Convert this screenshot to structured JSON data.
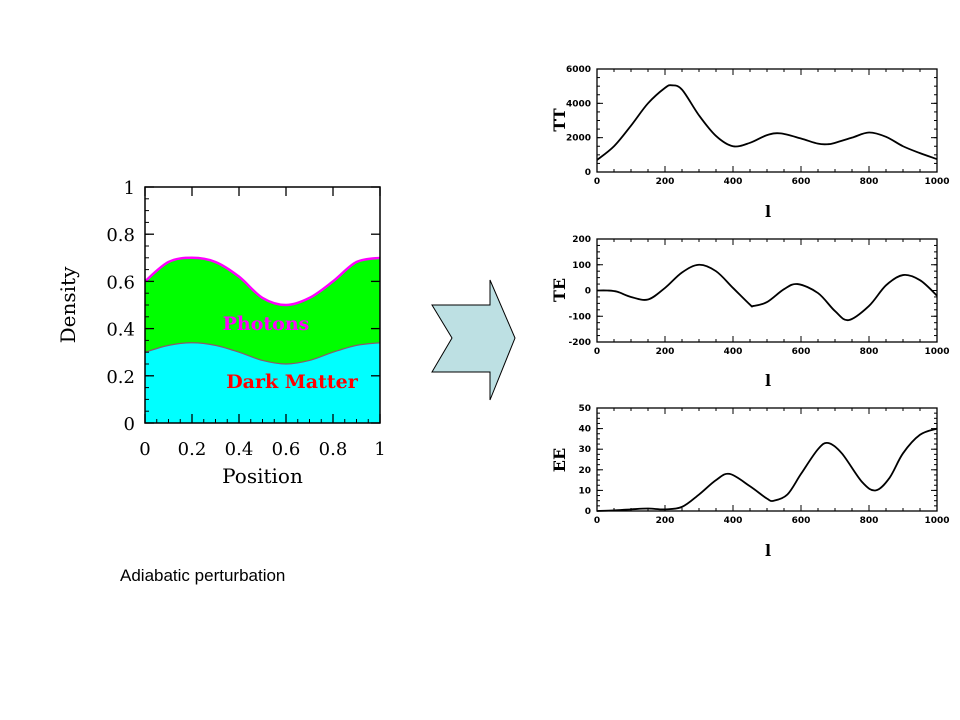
{
  "caption": "Adiabatic perturbation",
  "colors": {
    "dark_matter_fill": "#00ffff",
    "photons_fill": "#00ff00",
    "photons_line": "#ff00ff",
    "dark_matter_line": "#8a5a6a",
    "photons_label": "#ff00ff",
    "dark_matter_label": "#ff0000",
    "arrow_fill": "#bde0e3",
    "curve": "#000000"
  },
  "arrow": {
    "icon": "right-arrow-icon"
  },
  "chart_data": [
    {
      "id": "density",
      "type": "area",
      "xlabel": "Position",
      "ylabel": "Density",
      "xlim": [
        0,
        1
      ],
      "ylim": [
        0,
        1
      ],
      "xticks": [
        "0",
        "0.2",
        "0.4",
        "0.6",
        "0.8",
        "1"
      ],
      "yticks": [
        "0",
        "0.2",
        "0.4",
        "0.6",
        "0.8",
        "1"
      ],
      "x": [
        0,
        0.1,
        0.2,
        0.3,
        0.4,
        0.5,
        0.6,
        0.7,
        0.8,
        0.9,
        1.0
      ],
      "series": [
        {
          "name": "Dark Matter",
          "values": [
            0.3,
            0.329,
            0.34,
            0.329,
            0.3,
            0.265,
            0.25,
            0.265,
            0.3,
            0.329,
            0.34
          ]
        },
        {
          "name": "Photons",
          "values": [
            0.6,
            0.682,
            0.7,
            0.682,
            0.62,
            0.53,
            0.5,
            0.53,
            0.6,
            0.682,
            0.7
          ]
        }
      ]
    },
    {
      "id": "TT",
      "type": "line",
      "ylabel": "TT",
      "xlabel": "l",
      "xlim": [
        0,
        1000
      ],
      "ylim": [
        0,
        6000
      ],
      "xticks": [
        "0",
        "200",
        "400",
        "600",
        "800",
        "1000"
      ],
      "yticks": [
        "0",
        "2000",
        "4000",
        "6000"
      ],
      "x": [
        0,
        50,
        100,
        150,
        200,
        220,
        250,
        300,
        350,
        400,
        450,
        500,
        540,
        600,
        650,
        680,
        700,
        750,
        800,
        850,
        900,
        950,
        1000
      ],
      "values": [
        700,
        1500,
        2700,
        4000,
        4900,
        5050,
        4800,
        3300,
        2100,
        1500,
        1700,
        2150,
        2250,
        1950,
        1650,
        1620,
        1700,
        2000,
        2300,
        2050,
        1500,
        1100,
        750
      ]
    },
    {
      "id": "TE",
      "type": "line",
      "ylabel": "TE",
      "xlabel": "l",
      "xlim": [
        0,
        1000
      ],
      "ylim": [
        -200,
        200
      ],
      "xticks": [
        "0",
        "200",
        "400",
        "600",
        "800",
        "1000"
      ],
      "yticks": [
        "-200",
        "-100",
        "0",
        "100",
        "200"
      ],
      "x": [
        0,
        30,
        60,
        100,
        150,
        200,
        250,
        300,
        350,
        400,
        450,
        460,
        500,
        550,
        590,
        650,
        700,
        740,
        800,
        850,
        900,
        950,
        1000
      ],
      "values": [
        0,
        0,
        -5,
        -25,
        -35,
        10,
        70,
        100,
        75,
        10,
        -55,
        -60,
        -45,
        5,
        25,
        -10,
        -80,
        -115,
        -60,
        20,
        60,
        40,
        -20
      ]
    },
    {
      "id": "EE",
      "type": "line",
      "ylabel": "EE",
      "xlabel": "l",
      "xlim": [
        0,
        1000
      ],
      "ylim": [
        0,
        50
      ],
      "xticks": [
        "0",
        "200",
        "400",
        "600",
        "800",
        "1000"
      ],
      "yticks": [
        "0",
        "10",
        "20",
        "30",
        "40",
        "50"
      ],
      "x": [
        0,
        50,
        100,
        150,
        200,
        250,
        300,
        350,
        390,
        450,
        500,
        520,
        560,
        600,
        650,
        680,
        720,
        780,
        820,
        860,
        900,
        950,
        1000
      ],
      "values": [
        0,
        0.3,
        0.8,
        1.2,
        0.8,
        2,
        8,
        15,
        18,
        12,
        6,
        5,
        8,
        18,
        30,
        33,
        28,
        14,
        10,
        16,
        28,
        37,
        40
      ]
    }
  ]
}
